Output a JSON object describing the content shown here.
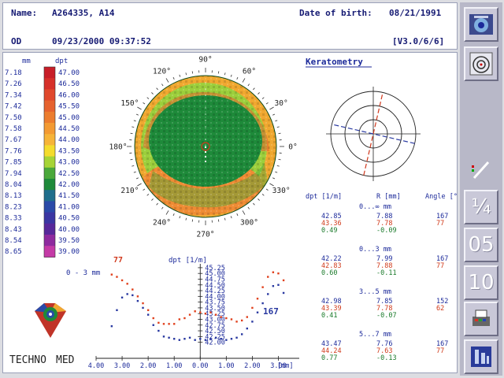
{
  "header": {
    "name_label": "Name:",
    "name_value": "A264335, A14",
    "dob_label": "Date of birth:",
    "dob_value": "08/21/1991",
    "eye": "OD",
    "exam_datetime": "09/23/2000 09:37:52",
    "version": "[V3.0/6/6]"
  },
  "scale": {
    "mm_header": "mm",
    "dpt_header": "dpt",
    "rows": [
      {
        "mm": "7.18",
        "dpt": "47.00",
        "color": "#c81e28"
      },
      {
        "mm": "7.26",
        "dpt": "46.50",
        "color": "#d6302a"
      },
      {
        "mm": "7.34",
        "dpt": "46.00",
        "color": "#e0482c"
      },
      {
        "mm": "7.42",
        "dpt": "45.50",
        "color": "#e6622e"
      },
      {
        "mm": "7.50",
        "dpt": "45.00",
        "color": "#ec7d2e"
      },
      {
        "mm": "7.58",
        "dpt": "44.50",
        "color": "#f39a32"
      },
      {
        "mm": "7.67",
        "dpt": "44.00",
        "color": "#f6b438"
      },
      {
        "mm": "7.76",
        "dpt": "43.50",
        "color": "#f4dc2c"
      },
      {
        "mm": "7.85",
        "dpt": "43.00",
        "color": "#a6d436"
      },
      {
        "mm": "7.94",
        "dpt": "42.50",
        "color": "#4aa83a"
      },
      {
        "mm": "8.04",
        "dpt": "42.00",
        "color": "#1e8a3a"
      },
      {
        "mm": "8.13",
        "dpt": "41.50",
        "color": "#1f6e8c"
      },
      {
        "mm": "8.23",
        "dpt": "41.00",
        "color": "#2a4aa8"
      },
      {
        "mm": "8.33",
        "dpt": "40.50",
        "color": "#3a36a2"
      },
      {
        "mm": "8.43",
        "dpt": "40.00",
        "color": "#57289a"
      },
      {
        "mm": "8.54",
        "dpt": "39.50",
        "color": "#8e2a9e"
      },
      {
        "mm": "8.65",
        "dpt": "39.00",
        "color": "#c43aa6"
      }
    ]
  },
  "map": {
    "angle_labels": [
      "90°",
      "60°",
      "30°",
      "0°",
      "330°",
      "300°",
      "270°",
      "240°",
      "210°",
      "180°",
      "150°",
      "120°"
    ],
    "colors": {
      "outer_ring": "#f0a830",
      "mid_ring": "#9ccf3c",
      "center": "#1e8a3a",
      "inferior_lobe": "#ef8c34"
    }
  },
  "keratometry": {
    "title": "Keratometry",
    "steep_axis_color": "#d0381c",
    "flat_axis_color": "#2838a0",
    "table_header": {
      "dpt": "dpt [1/m]",
      "r": "R [mm]",
      "angle": "Angle [°]"
    },
    "zones": [
      {
        "label": "0...∞ mm",
        "rows": [
          [
            "42.85",
            "7.88",
            "167"
          ],
          [
            "43.36",
            "7.78",
            "77"
          ],
          [
            "0.49",
            "-0.09",
            ""
          ]
        ]
      },
      {
        "label": "0...3 mm",
        "rows": [
          [
            "42.22",
            "7.99",
            "167"
          ],
          [
            "42.83",
            "7.88",
            "77"
          ],
          [
            "0.60",
            "-0.11",
            ""
          ]
        ]
      },
      {
        "label": "3...5 mm",
        "rows": [
          [
            "42.98",
            "7.85",
            "152"
          ],
          [
            "43.39",
            "7.78",
            "62"
          ],
          [
            "0.41",
            "-0.07",
            ""
          ]
        ]
      },
      {
        "label": "5...7 mm",
        "rows": [
          [
            "43.47",
            "7.76",
            "167"
          ],
          [
            "44.24",
            "7.63",
            "77"
          ],
          [
            "0.77",
            "-0.13",
            ""
          ]
        ]
      }
    ],
    "row_colors": [
      "#1c2a9a",
      "#d03a1a",
      "#1a7a2a"
    ]
  },
  "profile": {
    "axis_title": "dpt [1/m]",
    "range_label": "0 - 3 mm",
    "x_unit": "[mm]",
    "label_77": "77",
    "label_167": "167",
    "y_ticks": [
      "45.25",
      "45.00",
      "44.75",
      "44.50",
      "44.25",
      "44.00",
      "43.75",
      "43.50",
      "43.25",
      "43.00",
      "42.75",
      "42.50",
      "42.25",
      "42.00"
    ],
    "x_ticks": [
      "4.00",
      "3.00",
      "2.00",
      "1.00",
      "0.00",
      "1.00",
      "2.00",
      "3.00"
    ],
    "chart_data": {
      "type": "scatter",
      "x_range": [
        -4,
        3.5
      ],
      "y_range": [
        41.85,
        45.35
      ],
      "series": [
        {
          "name": "77",
          "color": "#e0401c",
          "points": [
            [
              -3.4,
              44.95
            ],
            [
              -3.2,
              44.85
            ],
            [
              -3.0,
              44.7
            ],
            [
              -2.8,
              44.55
            ],
            [
              -2.6,
              44.3
            ],
            [
              -2.4,
              44.0
            ],
            [
              -2.2,
              43.7
            ],
            [
              -2.0,
              43.4
            ],
            [
              -1.8,
              43.05
            ],
            [
              -1.6,
              42.85
            ],
            [
              -1.4,
              42.8
            ],
            [
              -1.2,
              42.8
            ],
            [
              -1.0,
              42.8
            ],
            [
              -0.8,
              43.0
            ],
            [
              -0.6,
              43.05
            ],
            [
              -0.4,
              43.2
            ],
            [
              -0.2,
              43.35
            ],
            [
              0.0,
              43.3
            ],
            [
              0.2,
              43.25
            ],
            [
              0.4,
              43.3
            ],
            [
              0.6,
              43.2
            ],
            [
              0.8,
              43.1
            ],
            [
              1.0,
              43.05
            ],
            [
              1.2,
              43.0
            ],
            [
              1.4,
              42.9
            ],
            [
              1.6,
              42.95
            ],
            [
              1.8,
              43.1
            ],
            [
              2.0,
              43.5
            ],
            [
              2.2,
              43.9
            ],
            [
              2.4,
              44.4
            ],
            [
              2.6,
              44.85
            ],
            [
              2.8,
              45.05
            ],
            [
              3.0,
              45.0
            ],
            [
              3.2,
              44.7
            ]
          ]
        },
        {
          "name": "167",
          "color": "#2838a0",
          "points": [
            [
              -3.4,
              42.7
            ],
            [
              -3.2,
              43.4
            ],
            [
              -3.0,
              43.95
            ],
            [
              -2.8,
              44.1
            ],
            [
              -2.6,
              44.05
            ],
            [
              -2.4,
              43.8
            ],
            [
              -2.2,
              43.5
            ],
            [
              -2.0,
              43.2
            ],
            [
              -1.8,
              42.75
            ],
            [
              -1.6,
              42.5
            ],
            [
              -1.4,
              42.25
            ],
            [
              -1.2,
              42.2
            ],
            [
              -1.0,
              42.15
            ],
            [
              -0.8,
              42.1
            ],
            [
              -0.6,
              42.15
            ],
            [
              -0.4,
              42.2
            ],
            [
              -0.2,
              42.1
            ],
            [
              0.0,
              42.15
            ],
            [
              0.2,
              42.1
            ],
            [
              0.4,
              42.15
            ],
            [
              0.6,
              42.2
            ],
            [
              0.8,
              42.15
            ],
            [
              1.0,
              42.1
            ],
            [
              1.2,
              42.15
            ],
            [
              1.4,
              42.2
            ],
            [
              1.6,
              42.35
            ],
            [
              1.8,
              42.6
            ],
            [
              2.0,
              42.9
            ],
            [
              2.2,
              43.3
            ],
            [
              2.4,
              43.7
            ],
            [
              2.6,
              44.1
            ],
            [
              2.8,
              44.45
            ],
            [
              3.0,
              44.5
            ],
            [
              3.2,
              44.15
            ]
          ]
        }
      ]
    }
  },
  "logo": {
    "text_a": "TECHNO",
    "text_b": "MED"
  },
  "sidebar": {
    "button_05": "05",
    "button_10": "10"
  }
}
